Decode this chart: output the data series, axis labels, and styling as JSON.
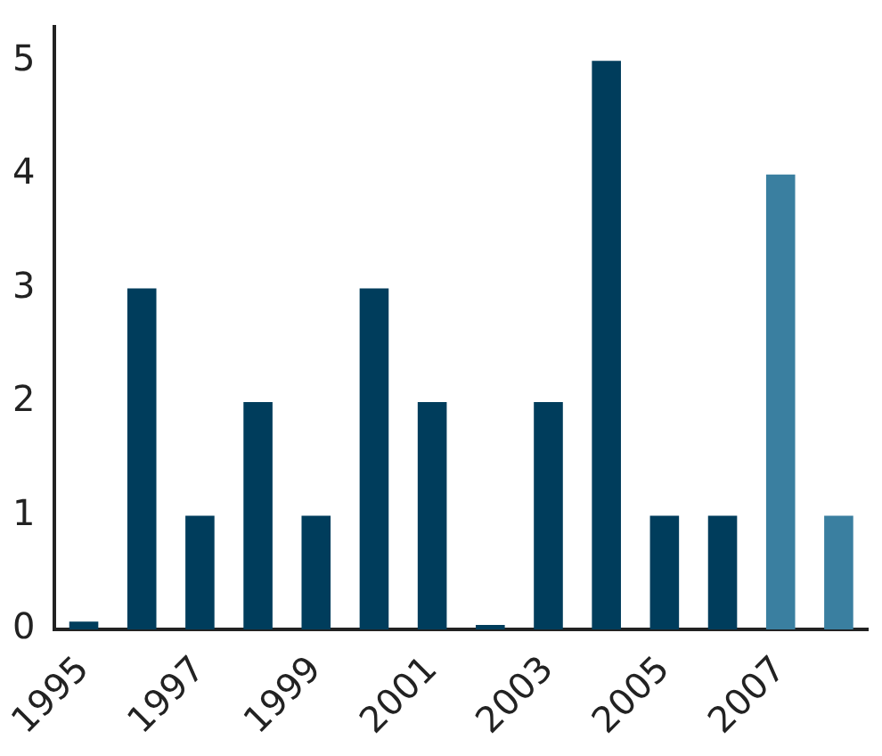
{
  "chart_data": {
    "type": "bar",
    "categories": [
      "1995",
      null,
      "1997",
      null,
      "1999",
      null,
      "2001",
      null,
      "2003",
      null,
      "2005",
      null,
      "2007",
      null
    ],
    "values": [
      0.07,
      3,
      1,
      2,
      1,
      3,
      2,
      0.04,
      2,
      5,
      1,
      1,
      4,
      1
    ],
    "colors": [
      "#003d5c",
      "#003d5c",
      "#003d5c",
      "#003d5c",
      "#003d5c",
      "#003d5c",
      "#003d5c",
      "#003d5c",
      "#003d5c",
      "#003d5c",
      "#003d5c",
      "#003d5c",
      "#3a7fa0",
      "#3a7fa0"
    ],
    "ylim": [
      0,
      5.3
    ],
    "yticks": [
      0,
      1,
      2,
      3,
      4,
      5
    ],
    "grid": false,
    "legend": false
  }
}
